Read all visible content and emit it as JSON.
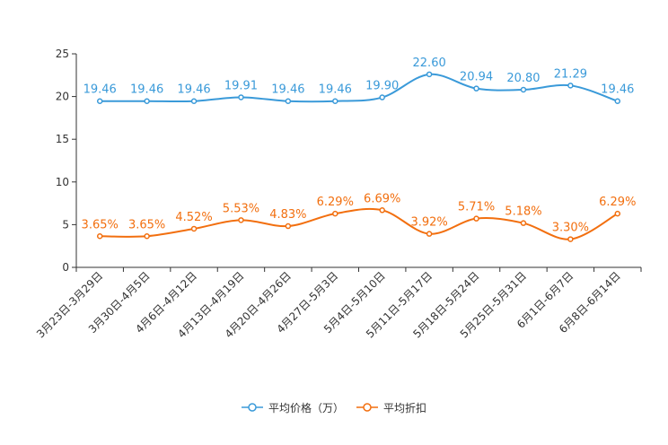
{
  "chart_data": {
    "type": "line",
    "categories": [
      "3月23日-3月29日",
      "3月30日-4月5日",
      "4月6日-4月12日",
      "4月13日-4月19日",
      "4月20日-4月26日",
      "4月27日-5月3日",
      "5月4日-5月10日",
      "5月11日-5月17日",
      "5月18日-5月24日",
      "5月25日-5月31日",
      "6月1日-6月7日",
      "6月8日-6月14日"
    ],
    "series": [
      {
        "name": "平均价格（万）",
        "color": "#3a9ad9",
        "values": [
          19.46,
          19.46,
          19.46,
          19.91,
          19.46,
          19.46,
          19.9,
          22.6,
          20.94,
          20.8,
          21.29,
          19.46
        ],
        "labels": [
          "19.46",
          "19.46",
          "19.46",
          "19.91",
          "19.46",
          "19.46",
          "19.90",
          "22.60",
          "20.94",
          "20.80",
          "21.29",
          "19.46"
        ]
      },
      {
        "name": "平均折扣",
        "color": "#f26f0f",
        "values": [
          3.65,
          3.65,
          4.52,
          5.53,
          4.83,
          6.29,
          6.69,
          3.92,
          5.71,
          5.18,
          3.3,
          6.29
        ],
        "labels": [
          "3.65%",
          "3.65%",
          "4.52%",
          "5.53%",
          "4.83%",
          "6.29%",
          "6.69%",
          "3.92%",
          "5.71%",
          "5.18%",
          "3.30%",
          "6.29%"
        ]
      }
    ],
    "yticks": [
      "0",
      "5",
      "10",
      "15",
      "20",
      "25"
    ],
    "ylim": [
      0,
      25
    ],
    "legend_position": "bottom"
  }
}
